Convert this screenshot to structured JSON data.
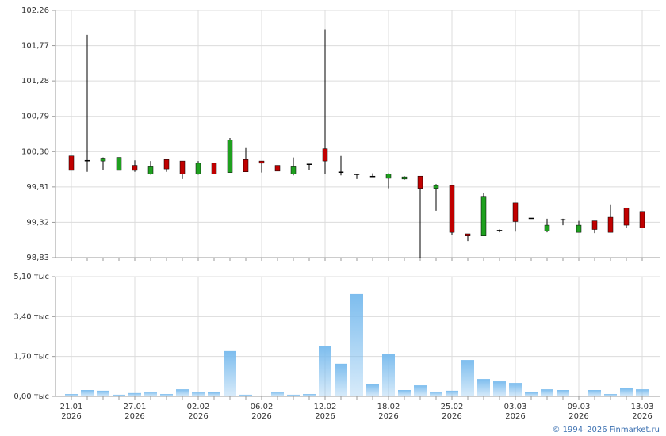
{
  "chart_data": [
    {
      "type": "candlestick",
      "up_color": "#1fa01f",
      "down_color": "#c00000",
      "wick_color": "#000000",
      "grid": true,
      "open": [
        100.24,
        100.18,
        100.17,
        100.04,
        100.11,
        99.99,
        100.19,
        100.17,
        99.99,
        100.14,
        100.01,
        100.19,
        100.17,
        100.11,
        99.99,
        100.13,
        100.34,
        100.02,
        99.99,
        99.96,
        99.93,
        99.92,
        99.96,
        99.79,
        99.83,
        99.16,
        99.13,
        99.21,
        99.59,
        99.38,
        99.2,
        99.36,
        99.18,
        99.34,
        99.39,
        99.52,
        99.47
      ],
      "high": [
        100.24,
        101.92,
        100.22,
        100.22,
        100.18,
        100.17,
        100.19,
        100.17,
        100.17,
        100.14,
        100.49,
        100.35,
        100.17,
        100.11,
        100.22,
        100.13,
        101.99,
        100.24,
        99.99,
        100.0,
        100.0,
        99.96,
        99.96,
        99.85,
        99.83,
        99.16,
        99.72,
        99.22,
        99.59,
        99.38,
        99.37,
        99.37,
        99.34,
        99.34,
        99.57,
        99.52,
        99.47
      ],
      "low": [
        100.04,
        100.02,
        100.04,
        100.04,
        100.02,
        99.98,
        100.02,
        99.92,
        99.98,
        99.99,
        100.01,
        100.02,
        100.01,
        100.03,
        99.97,
        100.04,
        99.99,
        99.97,
        99.92,
        99.95,
        99.79,
        99.91,
        98.83,
        99.48,
        99.14,
        99.06,
        99.13,
        99.18,
        99.19,
        99.37,
        99.18,
        99.28,
        99.18,
        99.17,
        99.18,
        99.24,
        99.24
      ],
      "close": [
        100.04,
        100.18,
        100.21,
        100.22,
        100.04,
        100.09,
        100.06,
        99.99,
        100.14,
        99.99,
        100.46,
        100.02,
        100.14,
        100.03,
        100.09,
        100.13,
        100.17,
        100.02,
        99.99,
        99.96,
        99.99,
        99.95,
        99.79,
        99.83,
        99.18,
        99.13,
        99.68,
        99.21,
        99.33,
        99.38,
        99.28,
        99.36,
        99.28,
        99.22,
        99.18,
        99.28,
        99.24
      ],
      "ylim": [
        98.83,
        102.26
      ],
      "yticks": [
        {
          "value": 98.83,
          "label": "98,83"
        },
        {
          "value": 99.32,
          "label": "99,32"
        },
        {
          "value": 99.81,
          "label": "99,81"
        },
        {
          "value": 100.3,
          "label": "100,30"
        },
        {
          "value": 100.79,
          "label": "100,79"
        },
        {
          "value": 101.28,
          "label": "101,28"
        },
        {
          "value": 101.77,
          "label": "101,77"
        },
        {
          "value": 102.26,
          "label": "102,26"
        }
      ]
    },
    {
      "type": "bar",
      "color": "#7dbdee",
      "grid": true,
      "categories": [
        "21.01\n2026",
        null,
        null,
        null,
        "27.01\n2026",
        null,
        null,
        null,
        "02.02\n2026",
        null,
        null,
        null,
        "06.02\n2026",
        null,
        null,
        null,
        "12.02\n2026",
        null,
        null,
        null,
        "18.02\n2026",
        null,
        null,
        null,
        "25.02\n2026",
        null,
        null,
        null,
        "03.03\n2026",
        null,
        null,
        null,
        "09.03\n2026",
        null,
        null,
        null,
        "13.03\n2026"
      ],
      "values": [
        0.1,
        0.27,
        0.24,
        0.07,
        0.14,
        0.2,
        0.1,
        0.3,
        0.2,
        0.17,
        1.93,
        0.07,
        0.03,
        0.2,
        0.07,
        0.1,
        2.13,
        1.39,
        4.36,
        0.51,
        1.79,
        0.27,
        0.47,
        0.2,
        0.24,
        1.55,
        0.74,
        0.64,
        0.57,
        0.17,
        0.3,
        0.27,
        0.03,
        0.27,
        0.1,
        0.34,
        0.3
      ],
      "ylim": [
        0,
        5.1
      ],
      "yticks": [
        {
          "value": 0,
          "label": "0,00 тыс"
        },
        {
          "value": 1.7,
          "label": "1,70 тыс"
        },
        {
          "value": 3.4,
          "label": "3,40 тыс"
        },
        {
          "value": 5.1,
          "label": "5,10 тыс"
        }
      ]
    }
  ],
  "footer": "© 1994–2026 Finmarket.ru"
}
